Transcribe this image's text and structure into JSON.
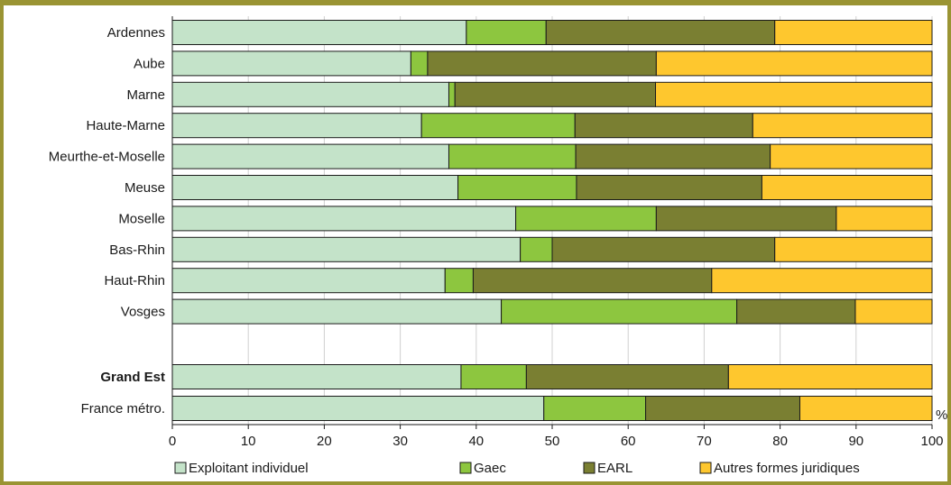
{
  "chart_data": {
    "type": "bar",
    "orientation": "horizontal",
    "stacked": true,
    "categories": [
      "Ardennes",
      "Aube",
      "Marne",
      "Haute-Marne",
      "Meurthe-et-Moselle",
      "Meuse",
      "Moselle",
      "Bas-Rhin",
      "Haut-Rhin",
      "Vosges",
      "Grand Est",
      "France métro."
    ],
    "bold_categories": [
      "Grand Est"
    ],
    "series": [
      {
        "name": "Exploitant individuel",
        "color": "#c4e3c9",
        "values": [
          38.7,
          31.4,
          36.4,
          32.8,
          36.4,
          37.6,
          45.2,
          45.8,
          35.9,
          43.3,
          38.0,
          48.9
        ]
      },
      {
        "name": "Gaec",
        "color": "#8dc63f",
        "values": [
          10.5,
          2.2,
          0.8,
          20.2,
          16.7,
          15.6,
          18.5,
          4.2,
          3.7,
          31.0,
          8.6,
          13.4
        ]
      },
      {
        "name": "EARL",
        "color": "#7a7f32",
        "values": [
          30.1,
          30.1,
          26.4,
          23.4,
          25.6,
          24.4,
          23.7,
          29.3,
          31.4,
          15.6,
          26.6,
          20.3
        ]
      },
      {
        "name": "Autres formes juridiques",
        "color": "#fec72e",
        "values": [
          20.7,
          36.3,
          36.4,
          23.6,
          21.3,
          22.4,
          12.6,
          20.7,
          29.0,
          10.1,
          26.8,
          17.4
        ]
      }
    ],
    "xlim": [
      0,
      100
    ],
    "xticks": [
      "0",
      "10",
      "20",
      "30",
      "40",
      "50",
      "60",
      "70",
      "80",
      "90",
      "100"
    ],
    "xunit": "%",
    "grid": true,
    "legend_position": "bottom"
  }
}
